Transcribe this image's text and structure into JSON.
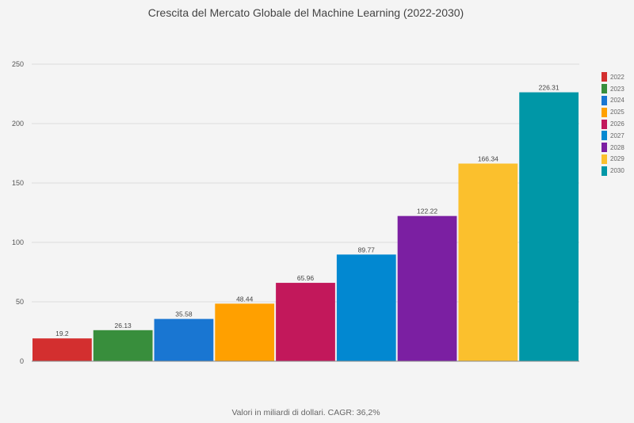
{
  "chart_data": {
    "type": "bar",
    "title": "Crescita del Mercato Globale del Machine Learning (2022-2030)",
    "footnote": "Valori in miliardi di dollari. CAGR: 36,2%",
    "categories": [
      "2022",
      "2023",
      "2024",
      "2025",
      "2026",
      "2027",
      "2028",
      "2029",
      "2030"
    ],
    "values": [
      19.2,
      26.13,
      35.58,
      48.44,
      65.96,
      89.77,
      122.22,
      166.34,
      226.31
    ],
    "value_labels": [
      "19.2",
      "26.13",
      "35.58",
      "48.44",
      "65.96",
      "89.77",
      "122.22",
      "166.34",
      "226.31"
    ],
    "colors": [
      "#d32f2f",
      "#388e3c",
      "#1976d2",
      "#ffa000",
      "#c2185b",
      "#0288d1",
      "#7b1fa2",
      "#fbc02d",
      "#0097a7"
    ],
    "ylim": [
      0,
      250
    ],
    "yticks": [
      "0",
      "50",
      "100",
      "150",
      "200",
      "250"
    ],
    "grid": true,
    "legend_position": "right",
    "xlabel": "",
    "ylabel": ""
  }
}
